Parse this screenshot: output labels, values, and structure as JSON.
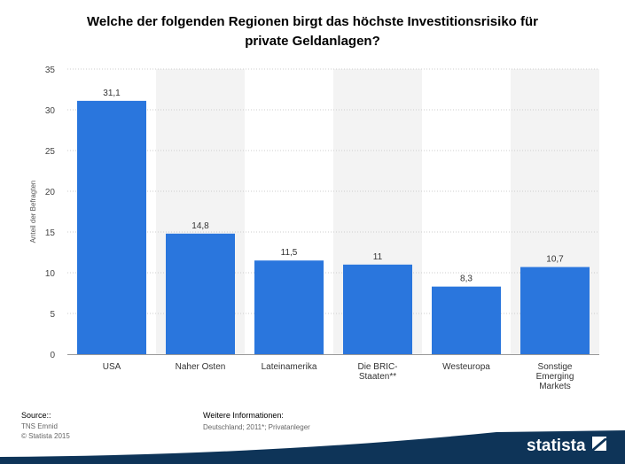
{
  "title_line1": "Welche der folgenden Regionen birgt das höchste Investitionsrisiko für",
  "title_line2": "private Geldanlagen?",
  "colors": {
    "bar": "#2a76dd",
    "stripe": "#f3f3f3",
    "grid": "#cccccc",
    "brand_dark": "#0e3458"
  },
  "chart_data": {
    "type": "bar",
    "categories": [
      [
        "USA"
      ],
      [
        "Naher Osten"
      ],
      [
        "Lateinamerika"
      ],
      [
        "Die BRIC-",
        "Staaten**"
      ],
      [
        "Westeuropa"
      ],
      [
        "Sonstige",
        "Emerging",
        "Markets"
      ]
    ],
    "values": [
      31.1,
      14.8,
      11.5,
      11,
      8.3,
      10.7
    ],
    "value_labels": [
      "31,1",
      "14,8",
      "11,5",
      "11",
      "8,3",
      "10,7"
    ],
    "ylabel": "Anteil der Befragten",
    "ylim": [
      0,
      35
    ],
    "yticks": [
      0,
      5,
      10,
      15,
      20,
      25,
      30,
      35
    ],
    "grid": true
  },
  "footer": {
    "source_label": "Source::",
    "source_line1": "TNS Emnid",
    "source_line2": "© Statista 2015",
    "info_label": "Weitere Informationen:",
    "info_value": "Deutschland; 2011*; Privatanleger"
  },
  "brand": {
    "name": "statista"
  }
}
